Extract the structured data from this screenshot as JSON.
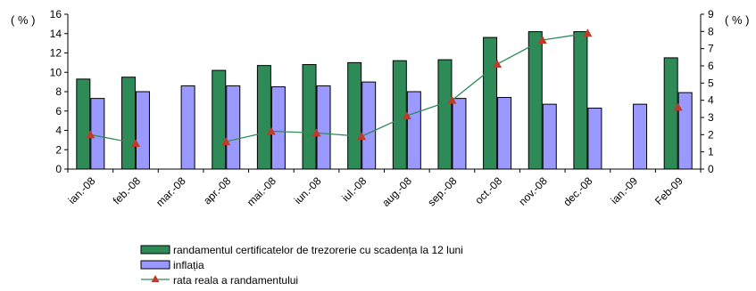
{
  "chart_data": {
    "type": "bar",
    "categories": [
      "ian.-08",
      "feb.-08",
      "mar.-08",
      "apr.-08",
      "mai.-08",
      "iun.-08",
      "iul.-08",
      "aug.-08",
      "sep.-08",
      "oct.-08",
      "nov.-08",
      "dec.-08",
      "ian.-09",
      "Feb-09"
    ],
    "y_left": {
      "unit_label": "( % )",
      "range": [
        0,
        16
      ],
      "ticks": [
        "0",
        "2",
        "4",
        "6",
        "8",
        "10",
        "12",
        "14",
        "16"
      ]
    },
    "y_right": {
      "unit_label": "( % )",
      "range": [
        0,
        9
      ],
      "ticks": [
        "0",
        "1",
        "2",
        "3",
        "4",
        "5",
        "6",
        "7",
        "8",
        "9"
      ]
    },
    "series": [
      {
        "name": "randamentul certificatelor de trezorerie cu scadența la 12 luni",
        "kind": "bar",
        "axis": "left",
        "color": "#2e8b57",
        "values": [
          9.3,
          9.5,
          null,
          10.2,
          10.7,
          10.8,
          11.0,
          11.2,
          11.3,
          13.6,
          14.2,
          14.2,
          null,
          11.5
        ]
      },
      {
        "name": "inflația",
        "kind": "bar",
        "axis": "left",
        "color": "#9999ff",
        "values": [
          7.3,
          8.0,
          8.6,
          8.6,
          8.5,
          8.6,
          9.0,
          8.0,
          7.3,
          7.4,
          6.7,
          6.3,
          6.7,
          7.9
        ]
      },
      {
        "name": "rata reala a randamentului",
        "kind": "line",
        "axis": "right",
        "color": "#2e8b57",
        "marker_color": "#c0392b",
        "values": [
          2.0,
          1.5,
          null,
          1.6,
          2.2,
          2.1,
          1.9,
          3.1,
          4.0,
          6.1,
          7.5,
          7.9,
          null,
          3.6
        ]
      }
    ],
    "legend": "bottom-center",
    "grid": false
  }
}
